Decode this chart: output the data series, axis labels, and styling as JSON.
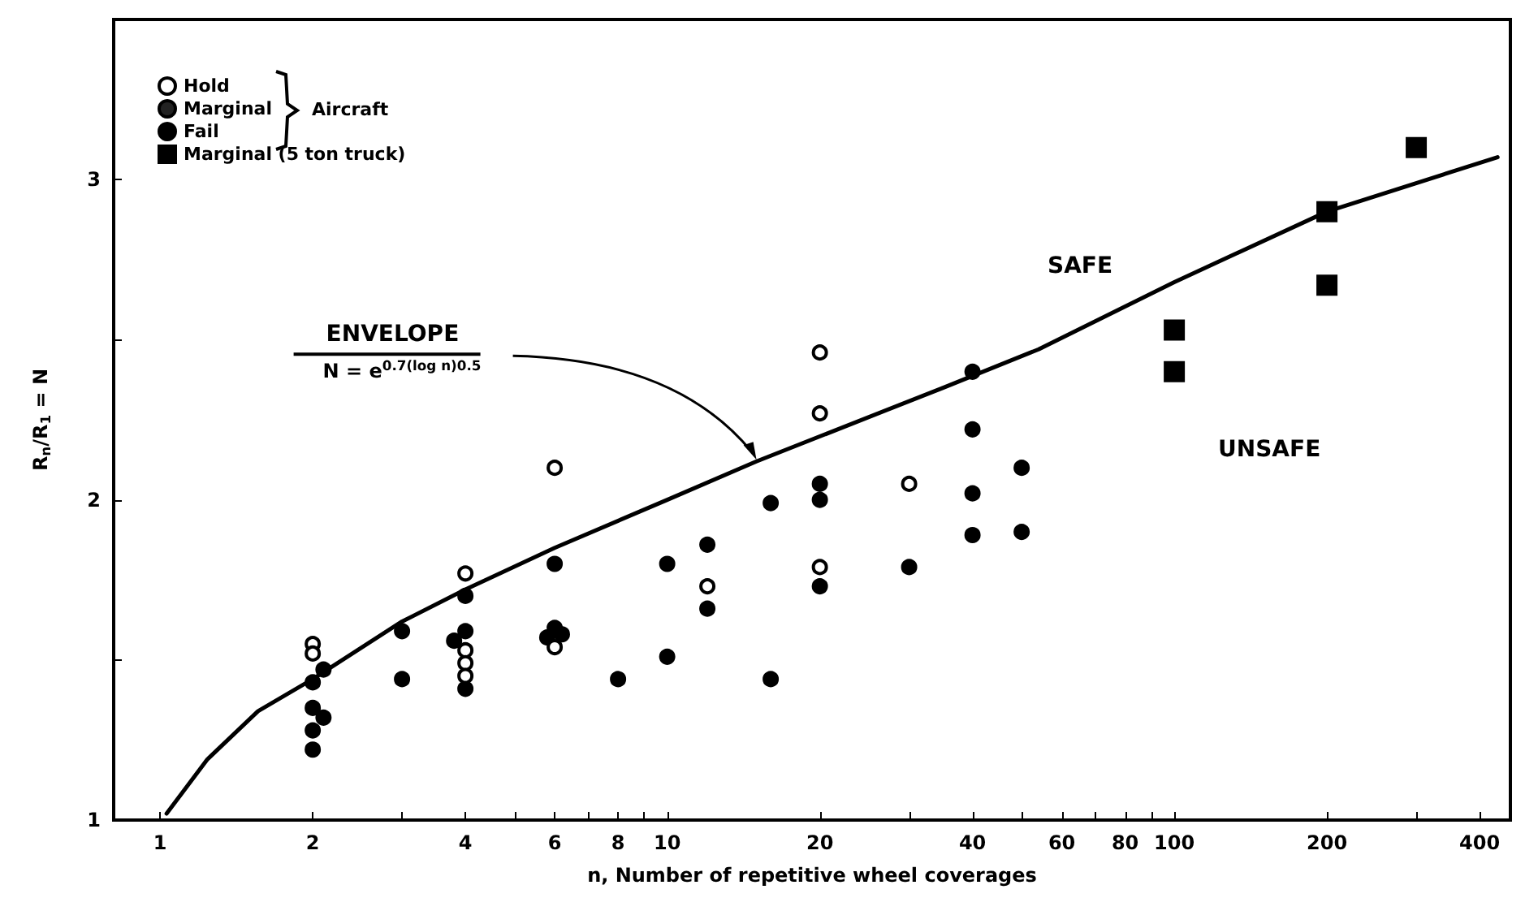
{
  "chart_data": {
    "type": "scatter",
    "xlabel": "n, Number of repetitive wheel coverages",
    "ylabel": "R$_{n}$/R$_{1}$ = N",
    "log": "x",
    "xlim": [
      0.81,
      460
    ],
    "ylim": [
      1,
      3.5
    ],
    "xticks": [
      1,
      2,
      {
        "value": 3,
        "label": null
      },
      4,
      {
        "value": 5,
        "label": null
      },
      6,
      {
        "value": 7,
        "label": null
      },
      8,
      {
        "value": 9,
        "label": null
      },
      10,
      20,
      {
        "value": 30,
        "label": null
      },
      40,
      {
        "value": 50,
        "label": null
      },
      60,
      {
        "value": 70,
        "label": null
      },
      80,
      {
        "value": 90,
        "label": null
      },
      100,
      200,
      {
        "value": 300,
        "label": null
      },
      400
    ],
    "yticks": [
      1,
      {
        "value": 1.5,
        "label": null
      },
      2,
      {
        "value": 2.5,
        "label": null
      },
      3
    ],
    "grid": false,
    "legend": "top left",
    "legend_title": "Aircraft",
    "series": [
      {
        "name": "Hold",
        "color": "#ffffff",
        "marker": "circle",
        "x": [
          2,
          2,
          4,
          4,
          4,
          4,
          6,
          6,
          12,
          20,
          20,
          20,
          30
        ],
        "values": [
          1.55,
          1.52,
          1.77,
          1.53,
          1.49,
          1.45,
          2.1,
          1.54,
          1.73,
          2.46,
          2.27,
          1.79,
          2.05
        ]
      },
      {
        "name": "Marginal",
        "color": "#222222",
        "marker": "circle"
      },
      {
        "name": "Fail",
        "color": "#000000",
        "marker": "circle",
        "x": [
          2.1,
          2,
          2,
          2.1,
          2,
          2,
          3,
          3,
          4,
          4,
          3.8,
          4,
          6,
          6,
          5.8,
          6.2,
          8,
          10,
          10,
          12,
          12,
          16,
          16,
          20,
          20,
          20,
          30,
          40,
          40,
          40,
          40,
          50,
          50
        ],
        "values": [
          1.47,
          1.43,
          1.35,
          1.32,
          1.28,
          1.22,
          1.59,
          1.44,
          1.7,
          1.59,
          1.56,
          1.41,
          1.8,
          1.6,
          1.57,
          1.58,
          1.44,
          1.8,
          1.51,
          1.86,
          1.66,
          1.99,
          1.44,
          2.05,
          2.0,
          1.73,
          1.79,
          2.4,
          2.22,
          2.02,
          1.89,
          2.1,
          1.9
        ]
      },
      {
        "name": "Marginal (5 ton truck)",
        "color": "#000000",
        "marker": "square",
        "x": [
          100,
          100,
          200,
          200,
          300
        ],
        "values": [
          2.53,
          2.4,
          2.9,
          2.67,
          3.1
        ]
      },
      {
        "type": "line",
        "color": "#000000",
        "marker": "none",
        "line_style": "solid",
        "x": [
          1.03,
          1.24,
          1.56,
          2,
          3,
          4,
          6,
          10,
          15,
          35,
          54,
          100,
          200,
          434
        ],
        "values": [
          1.02,
          1.19,
          1.34,
          1.44,
          1.62,
          1.72,
          1.85,
          2.0,
          2.12,
          2.35,
          2.47,
          2.68,
          2.9,
          3.07
        ]
      }
    ],
    "annotations": [
      "ENVELOPE",
      "N = e$^{0.7(log n)}$$^{0.5}$",
      "SAFE",
      "UNSAFE"
    ]
  }
}
